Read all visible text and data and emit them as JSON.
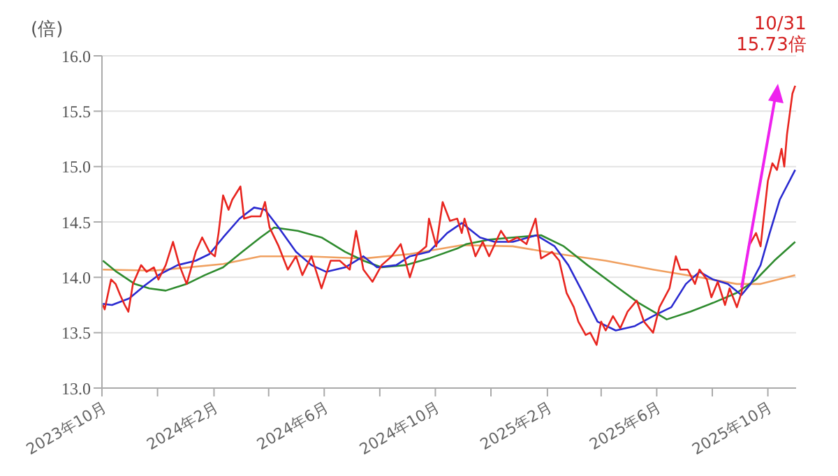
{
  "chart_data": {
    "type": "line",
    "ylabel": "(倍)",
    "xlim": [
      "2023-10-01",
      "2025-11-01"
    ],
    "ylim": [
      13.0,
      16.0
    ],
    "yticks": [
      {
        "value": 13,
        "label": "13.0"
      },
      {
        "value": 13.5,
        "label": "13.5"
      },
      {
        "value": 14,
        "label": "14.0"
      },
      {
        "value": 14.5,
        "label": "14.5"
      },
      {
        "value": 15,
        "label": "15.0"
      },
      {
        "value": 15.5,
        "label": "15.5"
      },
      {
        "value": 16,
        "label": "16.0"
      }
    ],
    "xticks": [
      {
        "value": "2023-10",
        "label": "2023年10月"
      },
      {
        "value": "2023-12",
        "label": null
      },
      {
        "value": "2024-02",
        "label": "2024年2月"
      },
      {
        "value": "2024-04",
        "label": null
      },
      {
        "value": "2024-06",
        "label": "2024年6月"
      },
      {
        "value": "2024-08",
        "label": null
      },
      {
        "value": "2024-10",
        "label": "2024年10月"
      },
      {
        "value": "2024-12",
        "label": null
      },
      {
        "value": "2025-02",
        "label": "2025年2月"
      },
      {
        "value": "2025-04",
        "label": null
      },
      {
        "value": "2025-06",
        "label": "2025年6月"
      },
      {
        "value": "2025-08",
        "label": null
      },
      {
        "value": "2025-10",
        "label": "2025年10月"
      }
    ],
    "grid": "y",
    "marker": "none",
    "line_style": "solid",
    "annotations": [
      {
        "text": "10/31 15.73倍",
        "x": "2025-10-31",
        "y": 15.73
      }
    ],
    "series": [
      {
        "color": "#f0a060",
        "x": [
          "2023-10-02",
          "2023-11-27",
          "2024-02-11",
          "2024-03-23",
          "2024-05-13",
          "2024-07-14",
          "2024-09-03",
          "2024-10-30",
          "2024-12-25",
          "2025-02-14",
          "2025-04-06",
          "2025-05-28",
          "2025-07-18",
          "2025-08-28",
          "2025-09-23",
          "2025-10-31"
        ],
        "values": [
          14.07,
          14.06,
          14.12,
          14.19,
          14.19,
          14.17,
          14.21,
          14.29,
          14.28,
          14.21,
          14.15,
          14.07,
          14.0,
          13.94,
          13.94,
          14.02
        ]
      },
      {
        "color": "#2e8b2e",
        "x": [
          "2023-10-02",
          "2023-10-17",
          "2023-11-06",
          "2023-11-22",
          "2023-12-10",
          "2024-01-02",
          "2024-01-22",
          "2024-02-11",
          "2024-03-03",
          "2024-03-23",
          "2024-04-07",
          "2024-05-03",
          "2024-05-29",
          "2024-06-24",
          "2024-07-14",
          "2024-08-03",
          "2024-08-29",
          "2024-09-24",
          "2024-10-25",
          "2024-11-04",
          "2024-11-29",
          "2024-12-25",
          "2025-01-25",
          "2025-02-19",
          "2025-03-17",
          "2025-04-17",
          "2025-05-12",
          "2025-06-12",
          "2025-07-08",
          "2025-08-02",
          "2025-08-28",
          "2025-09-18",
          "2025-10-08",
          "2025-10-31"
        ],
        "values": [
          14.15,
          14.05,
          13.94,
          13.9,
          13.88,
          13.94,
          14.02,
          14.09,
          14.23,
          14.36,
          14.45,
          14.42,
          14.36,
          14.23,
          14.15,
          14.09,
          14.11,
          14.17,
          14.26,
          14.3,
          14.34,
          14.36,
          14.38,
          14.28,
          14.11,
          13.92,
          13.77,
          13.62,
          13.69,
          13.77,
          13.86,
          13.98,
          14.15,
          14.32
        ]
      },
      {
        "color": "#2a2ad0",
        "x": [
          "2023-10-02",
          "2023-10-12",
          "2023-10-31",
          "2023-11-16",
          "2023-12-02",
          "2023-12-23",
          "2024-01-12",
          "2024-01-27",
          "2024-02-11",
          "2024-02-29",
          "2024-03-16",
          "2024-03-28",
          "2024-04-12",
          "2024-05-01",
          "2024-05-18",
          "2024-06-03",
          "2024-06-24",
          "2024-07-14",
          "2024-07-29",
          "2024-08-19",
          "2024-09-03",
          "2024-09-24",
          "2024-10-14",
          "2024-10-30",
          "2024-11-19",
          "2024-12-05",
          "2024-12-25",
          "2025-01-20",
          "2025-02-09",
          "2025-02-24",
          "2025-03-12",
          "2025-03-28",
          "2025-04-17",
          "2025-05-08",
          "2025-05-28",
          "2025-06-17",
          "2025-07-03",
          "2025-07-18",
          "2025-08-02",
          "2025-08-18",
          "2025-09-02",
          "2025-09-12",
          "2025-09-23",
          "2025-10-03",
          "2025-10-14",
          "2025-10-31"
        ],
        "values": [
          13.76,
          13.75,
          13.81,
          13.92,
          14.02,
          14.11,
          14.15,
          14.21,
          14.36,
          14.53,
          14.63,
          14.61,
          14.45,
          14.23,
          14.11,
          14.05,
          14.09,
          14.19,
          14.09,
          14.11,
          14.19,
          14.23,
          14.4,
          14.49,
          14.36,
          14.32,
          14.32,
          14.38,
          14.28,
          14.11,
          13.86,
          13.6,
          13.52,
          13.56,
          13.65,
          13.73,
          13.94,
          14.05,
          13.98,
          13.94,
          13.84,
          13.94,
          14.11,
          14.4,
          14.7,
          14.97
        ]
      },
      {
        "color": "#e8251f",
        "x": [
          "2023-10-02",
          "2023-10-04",
          "2023-10-11",
          "2023-10-16",
          "2023-10-21",
          "2023-10-26",
          "2023-10-30",
          "2023-11-04",
          "2023-11-13",
          "2023-11-19",
          "2023-11-27",
          "2023-12-02",
          "2023-12-10",
          "2023-12-18",
          "2023-12-25",
          "2024-01-02",
          "2024-01-12",
          "2024-01-19",
          "2024-01-27",
          "2024-02-02",
          "2024-02-06",
          "2024-02-11",
          "2024-02-17",
          "2024-02-21",
          "2024-03-01",
          "2024-03-05",
          "2024-03-13",
          "2024-03-23",
          "2024-03-28",
          "2024-04-02",
          "2024-04-12",
          "2024-04-22",
          "2024-05-01",
          "2024-05-08",
          "2024-05-18",
          "2024-05-29",
          "2024-06-08",
          "2024-06-18",
          "2024-06-29",
          "2024-07-06",
          "2024-07-14",
          "2024-07-24",
          "2024-08-03",
          "2024-08-14",
          "2024-08-24",
          "2024-09-03",
          "2024-09-11",
          "2024-09-21",
          "2024-09-24",
          "2024-10-02",
          "2024-10-09",
          "2024-10-17",
          "2024-10-25",
          "2024-10-30",
          "2024-11-02",
          "2024-11-14",
          "2024-11-22",
          "2024-11-29",
          "2024-12-12",
          "2024-12-20",
          "2024-12-30",
          "2025-01-09",
          "2025-01-19",
          "2025-01-25",
          "2025-02-06",
          "2025-02-14",
          "2025-02-22",
          "2025-03-02",
          "2025-03-07",
          "2025-03-15",
          "2025-03-20",
          "2025-03-27",
          "2025-04-01",
          "2025-04-06",
          "2025-04-14",
          "2025-04-22",
          "2025-04-30",
          "2025-05-10",
          "2025-05-18",
          "2025-05-28",
          "2025-06-04",
          "2025-06-15",
          "2025-06-22",
          "2025-06-27",
          "2025-07-05",
          "2025-07-13",
          "2025-07-18",
          "2025-07-26",
          "2025-07-31",
          "2025-08-07",
          "2025-08-15",
          "2025-08-20",
          "2025-08-28",
          "2025-09-02",
          "2025-09-10",
          "2025-09-18",
          "2025-09-23",
          "2025-10-01",
          "2025-10-06",
          "2025-10-11",
          "2025-10-16",
          "2025-10-19",
          "2025-10-22",
          "2025-10-28",
          "2025-10-31"
        ],
        "values": [
          13.75,
          13.71,
          13.98,
          13.94,
          13.84,
          13.75,
          13.69,
          13.94,
          14.11,
          14.05,
          14.09,
          13.98,
          14.11,
          14.32,
          14.11,
          13.94,
          14.23,
          14.36,
          14.23,
          14.19,
          14.4,
          14.74,
          14.61,
          14.7,
          14.82,
          14.53,
          14.55,
          14.55,
          14.68,
          14.45,
          14.28,
          14.07,
          14.19,
          14.02,
          14.19,
          13.9,
          14.15,
          14.15,
          14.07,
          14.42,
          14.07,
          13.96,
          14.11,
          14.19,
          14.3,
          14.0,
          14.21,
          14.28,
          14.53,
          14.28,
          14.68,
          14.51,
          14.53,
          14.4,
          14.53,
          14.19,
          14.32,
          14.19,
          14.42,
          14.32,
          14.36,
          14.3,
          14.53,
          14.17,
          14.23,
          14.15,
          13.86,
          13.73,
          13.6,
          13.48,
          13.5,
          13.39,
          13.6,
          13.52,
          13.65,
          13.54,
          13.69,
          13.79,
          13.6,
          13.5,
          13.73,
          13.9,
          14.19,
          14.07,
          14.07,
          13.94,
          14.07,
          13.98,
          13.82,
          13.96,
          13.75,
          13.9,
          13.73,
          13.86,
          14.28,
          14.4,
          14.28,
          14.87,
          15.03,
          14.97,
          15.16,
          15.0,
          15.29,
          15.66,
          15.73
        ]
      }
    ]
  }
}
